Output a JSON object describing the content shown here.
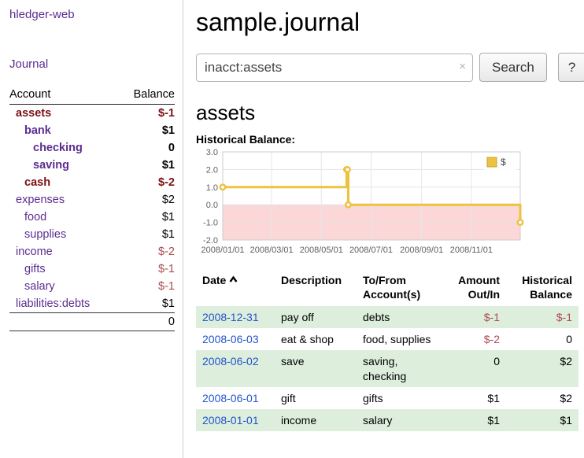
{
  "app": {
    "title": "hledger-web"
  },
  "colors": {
    "link_purple": "#5c2d91",
    "negative_strong": "#7b1113",
    "negative": "#ae4a50",
    "date_link_blue": "#2255cc",
    "row_highlight_green": "#ddeedd",
    "chart_line_gold": "#edc240",
    "chart_negative_region_pink": "#fbd7d7"
  },
  "sidebar": {
    "journal_link": "Journal",
    "table": {
      "headers": {
        "account": "Account",
        "balance": "Balance"
      },
      "rows": [
        {
          "name": "assets",
          "indent": 1,
          "balance": "$-1",
          "bold": true,
          "negative": true
        },
        {
          "name": "bank",
          "indent": 2,
          "balance": "$1",
          "bold": true,
          "negative": false
        },
        {
          "name": "checking",
          "indent": 3,
          "balance": "0",
          "bold": true,
          "negative": false
        },
        {
          "name": "saving",
          "indent": 3,
          "balance": "$1",
          "bold": true,
          "negative": false
        },
        {
          "name": "cash",
          "indent": 2,
          "balance": "$-2",
          "bold": true,
          "negative": true
        },
        {
          "name": "expenses",
          "indent": 1,
          "balance": "$2",
          "bold": false,
          "negative": false
        },
        {
          "name": "food",
          "indent": 2,
          "balance": "$1",
          "bold": false,
          "negative": false
        },
        {
          "name": "supplies",
          "indent": 2,
          "balance": "$1",
          "bold": false,
          "negative": false
        },
        {
          "name": "income",
          "indent": 1,
          "balance": "$-2",
          "bold": false,
          "negative": true
        },
        {
          "name": "gifts",
          "indent": 2,
          "balance": "$-1",
          "bold": false,
          "negative": true
        },
        {
          "name": "salary",
          "indent": 2,
          "balance": "$-1",
          "bold": false,
          "negative": true
        },
        {
          "name": "liabilities:debts",
          "indent": 1,
          "balance": "$1",
          "bold": false,
          "negative": false
        }
      ],
      "total": "0"
    }
  },
  "header": {
    "title": "sample.journal"
  },
  "search": {
    "value": "inacct:assets",
    "clear_icon": "×",
    "button": "Search",
    "help_button": "?"
  },
  "account_page": {
    "heading": "assets",
    "chart_label": "Historical Balance:"
  },
  "chart_data": {
    "type": "line",
    "step": true,
    "title": "Historical Balance",
    "series": [
      {
        "name": "$",
        "color": "#edc240",
        "points": [
          {
            "date": "2008-01-01",
            "value": 1
          },
          {
            "date": "2008-06-01",
            "value": 2
          },
          {
            "date": "2008-06-02",
            "value": 2
          },
          {
            "date": "2008-06-03",
            "value": 0
          },
          {
            "date": "2008-12-31",
            "value": -1
          }
        ]
      }
    ],
    "ylim": [
      -2,
      3
    ],
    "yticks": [
      "3.0",
      "2.0",
      "1.0",
      "0.0",
      "-1.0",
      "-2.0"
    ],
    "xticks": [
      {
        "date": "2008-01-01",
        "label": "2008/01/01"
      },
      {
        "date": "2008-03-01",
        "label": "2008/03/01"
      },
      {
        "date": "2008-05-01",
        "label": "2008/05/01"
      },
      {
        "date": "2008-07-01",
        "label": "2008/07/01"
      },
      {
        "date": "2008-09-01",
        "label": "2008/09/01"
      },
      {
        "date": "2008-11-01",
        "label": "2008/11/01"
      }
    ],
    "grid": true,
    "legend": {
      "label": "$",
      "position": "top-right"
    },
    "negative_fill": "#fbd7d7"
  },
  "register": {
    "headers": {
      "date": "Date",
      "description": "Description",
      "account": "To/From Account(s)",
      "amount": "Amount Out/In",
      "balance": "Historical Balance"
    },
    "sort_icon_name": "chevron-up",
    "rows": [
      {
        "date": "2008-12-31",
        "description": "pay off",
        "account": "debts",
        "amount": "$-1",
        "amount_negative": true,
        "balance": "$-1",
        "balance_negative": true
      },
      {
        "date": "2008-06-03",
        "description": "eat & shop",
        "account": "food, supplies",
        "amount": "$-2",
        "amount_negative": true,
        "balance": "0",
        "balance_negative": false
      },
      {
        "date": "2008-06-02",
        "description": "save",
        "account": "saving, checking",
        "amount": "0",
        "amount_negative": false,
        "balance": "$2",
        "balance_negative": false
      },
      {
        "date": "2008-06-01",
        "description": "gift",
        "account": "gifts",
        "amount": "$1",
        "amount_negative": false,
        "balance": "$2",
        "balance_negative": false
      },
      {
        "date": "2008-01-01",
        "description": "income",
        "account": "salary",
        "amount": "$1",
        "amount_negative": false,
        "balance": "$1",
        "balance_negative": false
      }
    ]
  }
}
